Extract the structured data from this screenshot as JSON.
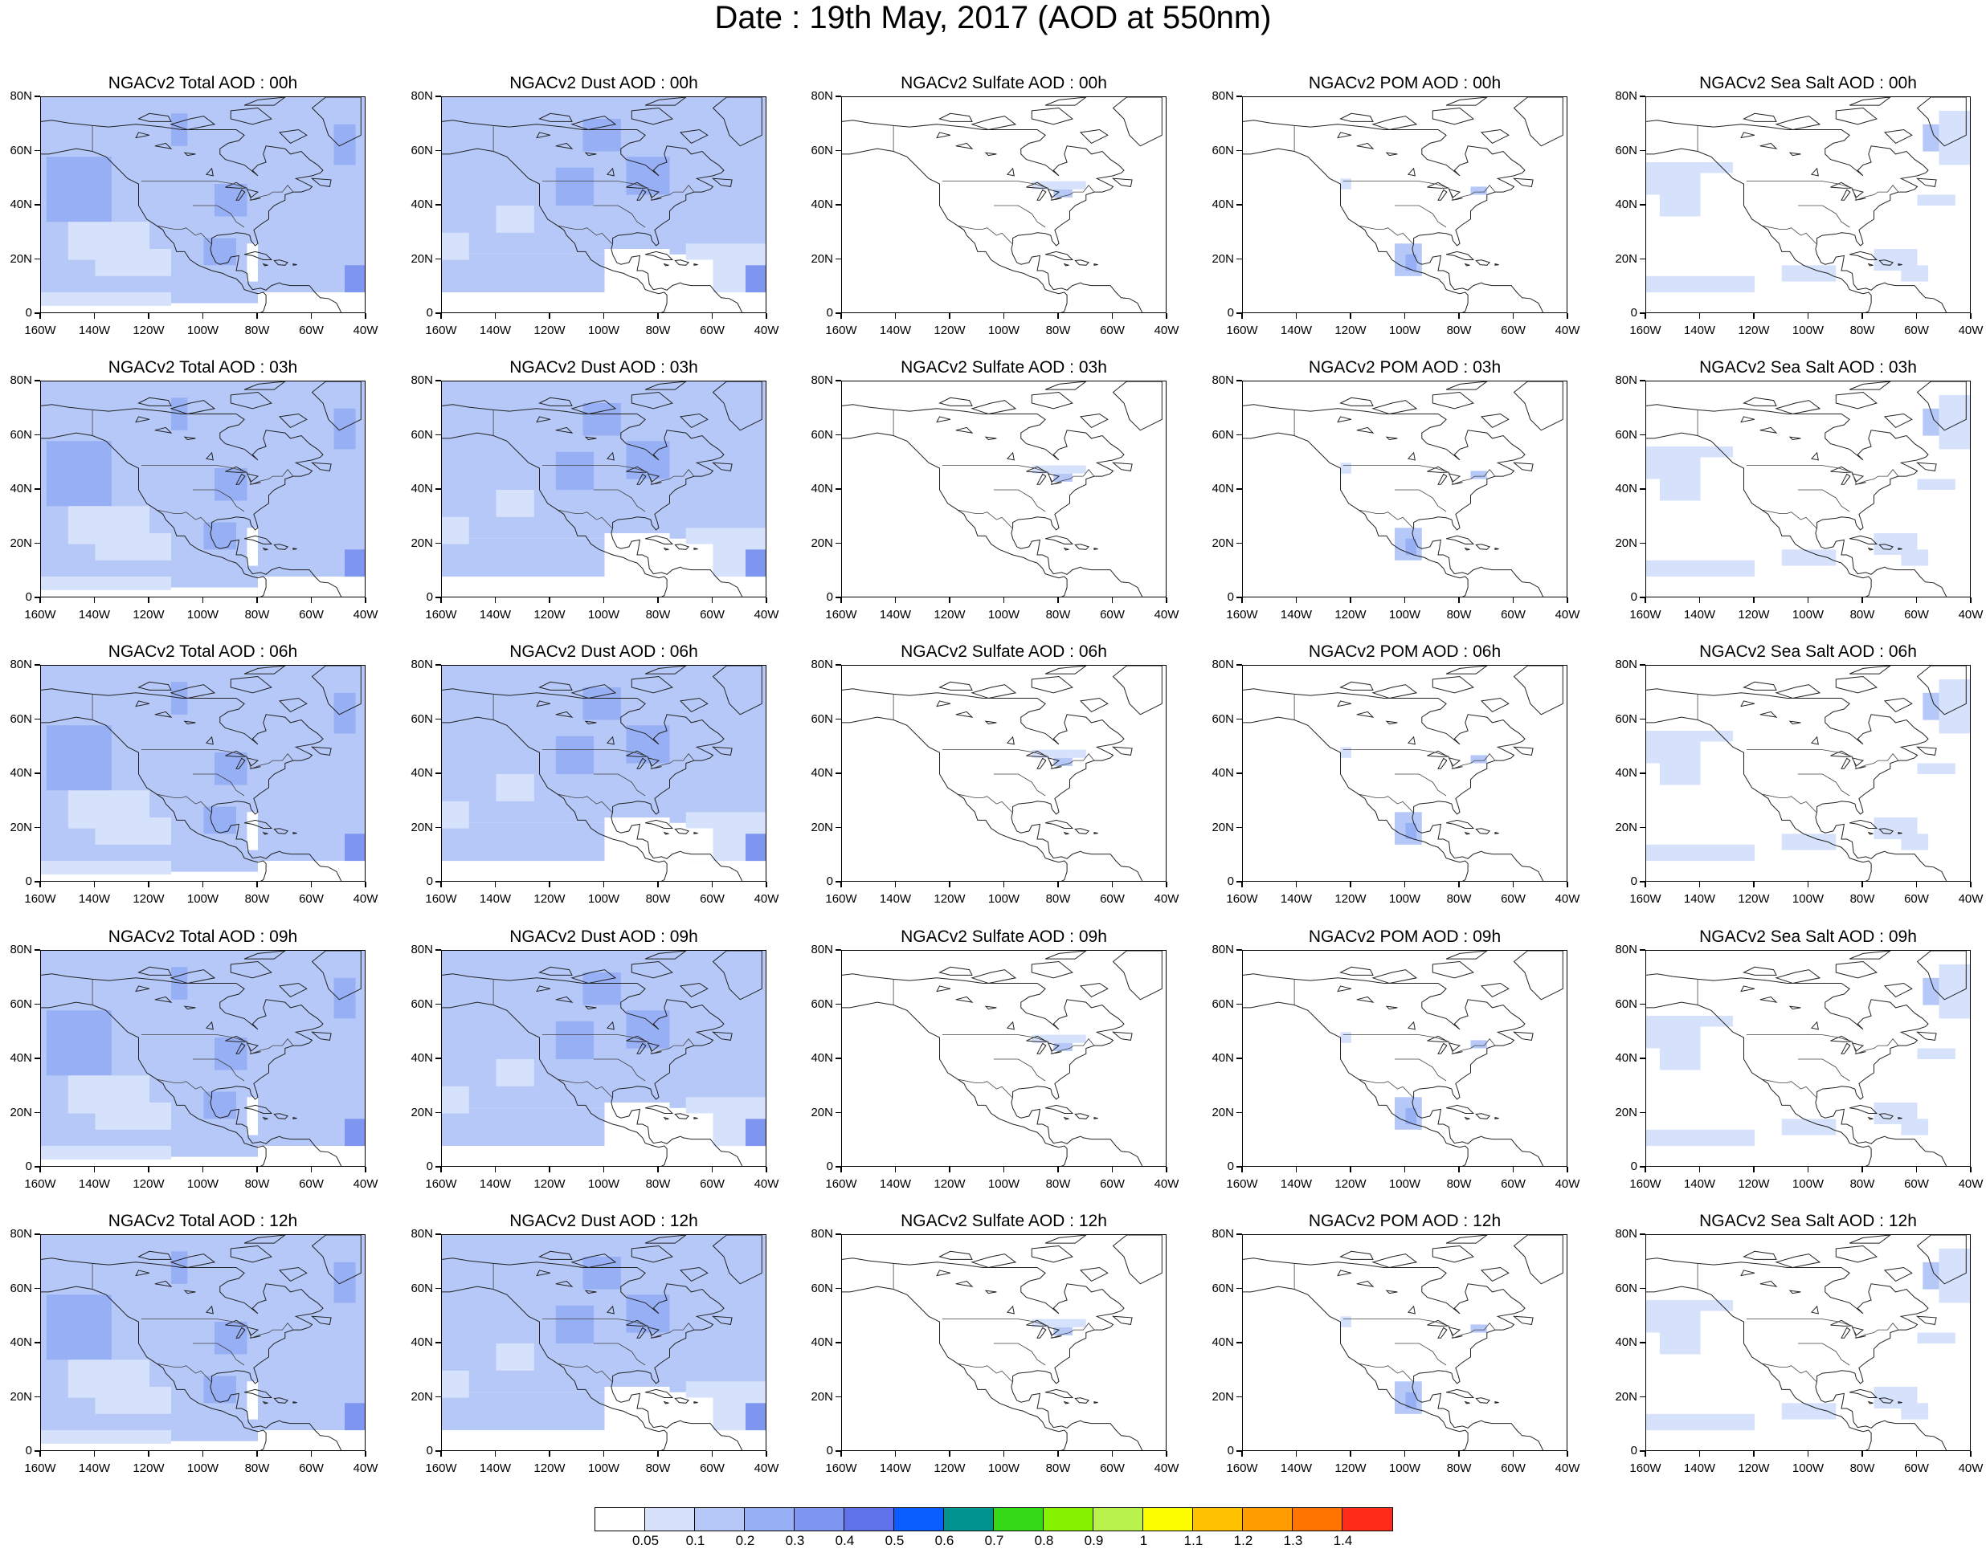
{
  "title": "Date : 19th May, 2017 (AOD at 550nm)",
  "panels": [
    {
      "title": "NGACv2 Total AOD : 00h",
      "species": "total"
    },
    {
      "title": "NGACv2 Dust AOD : 00h",
      "species": "dust"
    },
    {
      "title": "NGACv2 Sulfate AOD : 00h",
      "species": "sulfate"
    },
    {
      "title": "NGACv2 POM AOD : 00h",
      "species": "pom"
    },
    {
      "title": "NGACv2 Sea Salt AOD : 00h",
      "species": "seasalt"
    },
    {
      "title": "NGACv2 Total AOD : 03h",
      "species": "total"
    },
    {
      "title": "NGACv2 Dust AOD : 03h",
      "species": "dust"
    },
    {
      "title": "NGACv2 Sulfate AOD : 03h",
      "species": "sulfate"
    },
    {
      "title": "NGACv2 POM AOD : 03h",
      "species": "pom"
    },
    {
      "title": "NGACv2 Sea Salt AOD : 03h",
      "species": "seasalt"
    },
    {
      "title": "NGACv2 Total AOD : 06h",
      "species": "total"
    },
    {
      "title": "NGACv2 Dust AOD : 06h",
      "species": "dust"
    },
    {
      "title": "NGACv2 Sulfate AOD : 06h",
      "species": "sulfate"
    },
    {
      "title": "NGACv2 POM AOD : 06h",
      "species": "pom"
    },
    {
      "title": "NGACv2 Sea Salt AOD : 06h",
      "species": "seasalt"
    },
    {
      "title": "NGACv2 Total AOD : 09h",
      "species": "total"
    },
    {
      "title": "NGACv2 Dust AOD : 09h",
      "species": "dust"
    },
    {
      "title": "NGACv2 Sulfate AOD : 09h",
      "species": "sulfate"
    },
    {
      "title": "NGACv2 POM AOD : 09h",
      "species": "pom"
    },
    {
      "title": "NGACv2 Sea Salt  AOD : 09h",
      "species": "seasalt"
    },
    {
      "title": "NGACv2 Total AOD  : 12h",
      "species": "total"
    },
    {
      "title": "NGACv2 Dust AOD : 12h",
      "species": "dust"
    },
    {
      "title": "NGACv2 Sulfate AOD : 12h",
      "species": "sulfate"
    },
    {
      "title": "NGACv2 POM  AOD : 12h",
      "species": "pom"
    },
    {
      "title": "NGACv2 Sea Salt  AOD : 12h",
      "species": "seasalt"
    }
  ],
  "axes": {
    "lat_ticks": [
      "80N",
      "60N",
      "40N",
      "20N",
      "0"
    ],
    "lon_ticks": [
      "160W",
      "140W",
      "120W",
      "100W",
      "80W",
      "60W",
      "40W"
    ]
  },
  "colorbar": {
    "labels": [
      "0.05",
      "0.1",
      "0.2",
      "0.3",
      "0.4",
      "0.5",
      "0.6",
      "0.7",
      "0.8",
      "0.9",
      "1",
      "1.1",
      "1.2",
      "1.3",
      "1.4"
    ],
    "colors": [
      "#ffffff",
      "#d6e1fb",
      "#b5c8f8",
      "#96aff5",
      "#7f96f1",
      "#5f72ea",
      "#0a5eff",
      "#00938f",
      "#36d917",
      "#86f100",
      "#b9f24a",
      "#fffe00",
      "#ffc200",
      "#ff9d00",
      "#ff7400",
      "#ff2a17"
    ]
  }
}
